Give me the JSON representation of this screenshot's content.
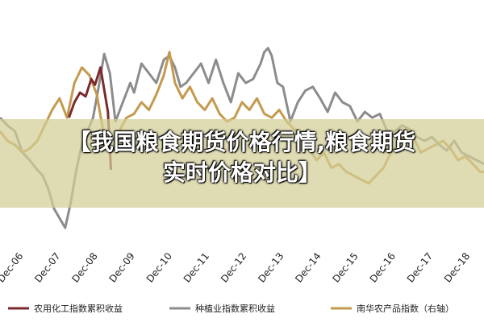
{
  "title_overlay": {
    "line1": "【我国粮食期货价格行情,粮食期货",
    "line2": "实时价格对比】"
  },
  "chart_data": {
    "type": "line",
    "title": "",
    "xlabel": "",
    "ylabel": "",
    "grid": false,
    "legend_position": "bottom",
    "x_ticks": [
      "Dec-06",
      "Dec-07",
      "Dec-08",
      "Dec-09",
      "Dec-10",
      "Dec-11",
      "Dec-12",
      "Dec-13",
      "Dec-14",
      "Dec-15",
      "Dec-16",
      "Dec-17",
      "Dec-18"
    ],
    "ylim": [
      0,
      100
    ],
    "series": [
      {
        "name": "农用化工指数累积收益",
        "color": "#7b2a2e",
        "x": [
          2007.85,
          2008.0,
          2008.15,
          2008.3,
          2008.45,
          2008.55,
          2008.7,
          2008.9,
          2008.98
        ],
        "y": [
          62,
          70,
          75,
          73,
          82,
          79,
          88,
          65,
          35
        ]
      },
      {
        "name": "种植业指数累积收益",
        "color": "#8c8c8c",
        "x": [
          2006.0,
          2006.2,
          2006.4,
          2006.6,
          2006.8,
          2007.0,
          2007.15,
          2007.3,
          2007.45,
          2007.6,
          2007.75,
          2007.9,
          2008.05,
          2008.2,
          2008.35,
          2008.5,
          2008.65,
          2008.8,
          2008.95,
          2009.1,
          2009.3,
          2009.5,
          2009.6,
          2009.8,
          2010.0,
          2010.2,
          2010.4,
          2010.55,
          2010.7,
          2010.85,
          2011.0,
          2011.2,
          2011.4,
          2011.6,
          2011.8,
          2012.0,
          2012.2,
          2012.4,
          2012.6,
          2012.8,
          2013.0,
          2013.1,
          2013.2,
          2013.3,
          2013.45,
          2013.6,
          2013.8,
          2014.0,
          2014.2,
          2014.4,
          2014.6,
          2014.8,
          2015.0,
          2015.2,
          2015.4,
          2015.6,
          2015.8,
          2016.0,
          2016.2,
          2016.4,
          2016.6,
          2016.8,
          2017.0,
          2017.2,
          2017.4,
          2017.6,
          2017.8,
          2018.0,
          2018.2,
          2018.4,
          2018.6,
          2018.8,
          2019.0
        ],
        "y": [
          62,
          58,
          55,
          44,
          40,
          35,
          32,
          25,
          15,
          10,
          5,
          18,
          35,
          48,
          55,
          62,
          78,
          95,
          85,
          60,
          70,
          80,
          75,
          90,
          85,
          80,
          92,
          94,
          88,
          78,
          80,
          85,
          90,
          80,
          92,
          80,
          70,
          85,
          80,
          82,
          90,
          96,
          98,
          94,
          80,
          78,
          60,
          70,
          76,
          78,
          72,
          65,
          75,
          70,
          68,
          60,
          65,
          62,
          64,
          55,
          55,
          58,
          56,
          52,
          50,
          52,
          48,
          45,
          50,
          44,
          42,
          40,
          38
        ]
      },
      {
        "name": "南华农产品指数（右轴）",
        "color": "#c49a4e",
        "x": [
          2006.0,
          2006.2,
          2006.4,
          2006.6,
          2006.8,
          2007.0,
          2007.2,
          2007.4,
          2007.6,
          2007.8,
          2008.0,
          2008.2,
          2008.4,
          2008.6,
          2008.8,
          2009.0,
          2009.2,
          2009.4,
          2009.6,
          2009.8,
          2010.0,
          2010.2,
          2010.4,
          2010.55,
          2010.7,
          2010.9,
          2011.1,
          2011.3,
          2011.5,
          2011.7,
          2011.9,
          2012.1,
          2012.3,
          2012.5,
          2012.7,
          2012.9,
          2013.1,
          2013.3,
          2013.5,
          2013.7,
          2013.9,
          2014.1,
          2014.3,
          2014.5,
          2014.7,
          2014.9,
          2015.1,
          2015.3,
          2015.5,
          2015.7,
          2015.9,
          2016.1,
          2016.3,
          2016.5,
          2016.7,
          2016.9,
          2017.1,
          2017.3,
          2017.5,
          2017.7,
          2017.9,
          2018.1,
          2018.3,
          2018.5,
          2018.7,
          2018.9,
          2019.0
        ],
        "y": [
          55,
          50,
          48,
          44,
          46,
          50,
          58,
          66,
          72,
          62,
          80,
          88,
          84,
          74,
          52,
          45,
          55,
          62,
          64,
          70,
          66,
          74,
          84,
          96,
          80,
          72,
          78,
          70,
          66,
          72,
          64,
          60,
          62,
          70,
          66,
          72,
          64,
          62,
          66,
          60,
          56,
          54,
          46,
          40,
          44,
          36,
          38,
          34,
          32,
          30,
          28,
          32,
          36,
          44,
          48,
          56,
          52,
          44,
          46,
          48,
          50,
          46,
          40,
          42,
          38,
          34,
          34
        ]
      }
    ]
  }
}
